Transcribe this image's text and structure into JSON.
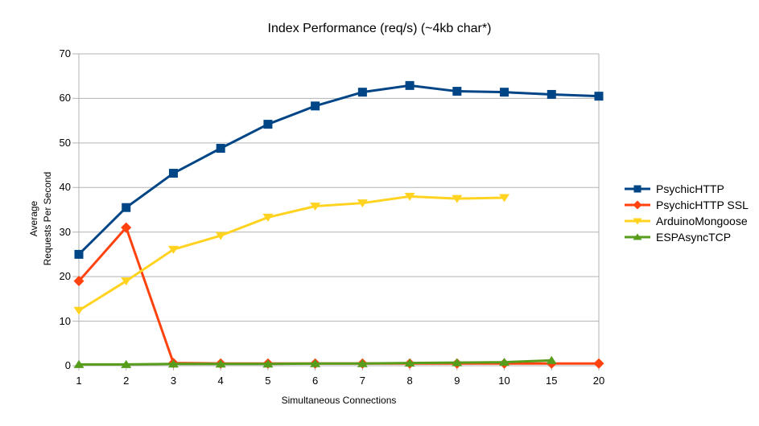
{
  "chart_data": {
    "type": "line",
    "title": "Index Performance (req/s) (~4kb char*)",
    "xlabel": "Simultaneous Connections",
    "ylabel_lines": [
      "Average",
      "Requests Per Second"
    ],
    "categories": [
      "1",
      "2",
      "3",
      "4",
      "5",
      "6",
      "7",
      "8",
      "9",
      "10",
      "15",
      "20"
    ],
    "ylim": [
      0,
      70
    ],
    "ytick_step": 10,
    "ytick_labels": [
      "0",
      "10",
      "20",
      "30",
      "40",
      "50",
      "60",
      "70"
    ],
    "grid": "horizontal-only",
    "legend_position": "right",
    "background_color": "#ffffff",
    "grid_color": "#b3b3b3",
    "text_color": "#000000",
    "series": [
      {
        "name": "PsychicHTTP",
        "color": "#004586",
        "marker": "square",
        "values": [
          25,
          35.5,
          43.2,
          48.8,
          54.2,
          58.3,
          61.4,
          62.9,
          61.6,
          61.4,
          60.9,
          60.5
        ]
      },
      {
        "name": "PsychicHTTP SSL",
        "color": "#FF420E",
        "marker": "diamond",
        "values": [
          19,
          31,
          0.6,
          0.5,
          0.5,
          0.5,
          0.5,
          0.5,
          0.5,
          0.5,
          0.5,
          0.5
        ]
      },
      {
        "name": "ArduinoMongoose",
        "color": "#FFD320",
        "marker": "triangle-down",
        "values": [
          12.4,
          19,
          26.1,
          29.2,
          33.3,
          35.8,
          36.5,
          38,
          37.5,
          37.7,
          null,
          null
        ]
      },
      {
        "name": "ESPAsyncTCP",
        "color": "#579D1C",
        "marker": "triangle-up",
        "values": [
          0.3,
          0.3,
          0.4,
          0.4,
          0.4,
          0.5,
          0.5,
          0.6,
          0.7,
          0.8,
          1.2,
          null
        ]
      }
    ]
  }
}
